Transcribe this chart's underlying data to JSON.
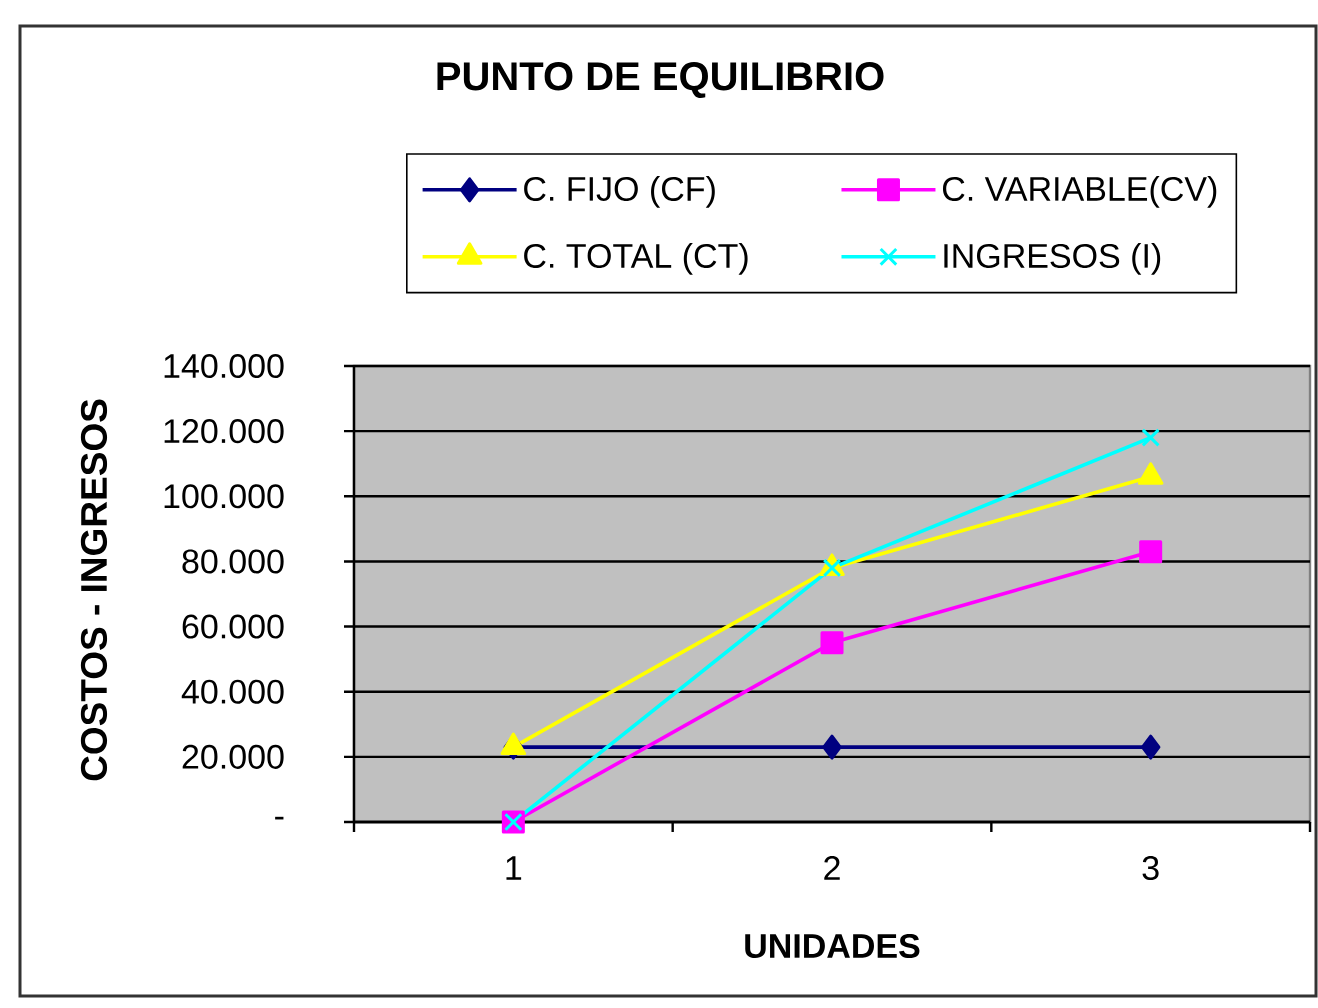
{
  "chart_data": {
    "type": "line",
    "title": "PUNTO DE EQUILIBRIO",
    "xlabel": "UNIDADES",
    "ylabel": "COSTOS - INGRESOS",
    "categories": [
      "1",
      "2",
      "3"
    ],
    "series": [
      {
        "name": "C. FIJO (CF)",
        "color": "#000080",
        "marker": "diamond",
        "values": [
          23000,
          23000,
          23000
        ]
      },
      {
        "name": "C. VARIABLE(CV)",
        "color": "#ff00ff",
        "marker": "square",
        "values": [
          0,
          55000,
          83000
        ]
      },
      {
        "name": "C. TOTAL (CT)",
        "color": "#ffff00",
        "marker": "triangle",
        "values": [
          23000,
          78000,
          106000
        ]
      },
      {
        "name": "INGRESOS (I)",
        "color": "#00ffff",
        "marker": "cross",
        "values": [
          0,
          78000,
          118000
        ]
      }
    ],
    "ylim": [
      0,
      140000
    ],
    "yticks": [
      {
        "value": 0,
        "label": "-"
      },
      {
        "value": 20000,
        "label": "20.000"
      },
      {
        "value": 40000,
        "label": "40.000"
      },
      {
        "value": 60000,
        "label": "60.000"
      },
      {
        "value": 80000,
        "label": "80.000"
      },
      {
        "value": 100000,
        "label": "100.000"
      },
      {
        "value": 120000,
        "label": "120.000"
      },
      {
        "value": 140000,
        "label": "140.000"
      }
    ],
    "grid": "y",
    "legend": "top",
    "line_style": "solid"
  }
}
